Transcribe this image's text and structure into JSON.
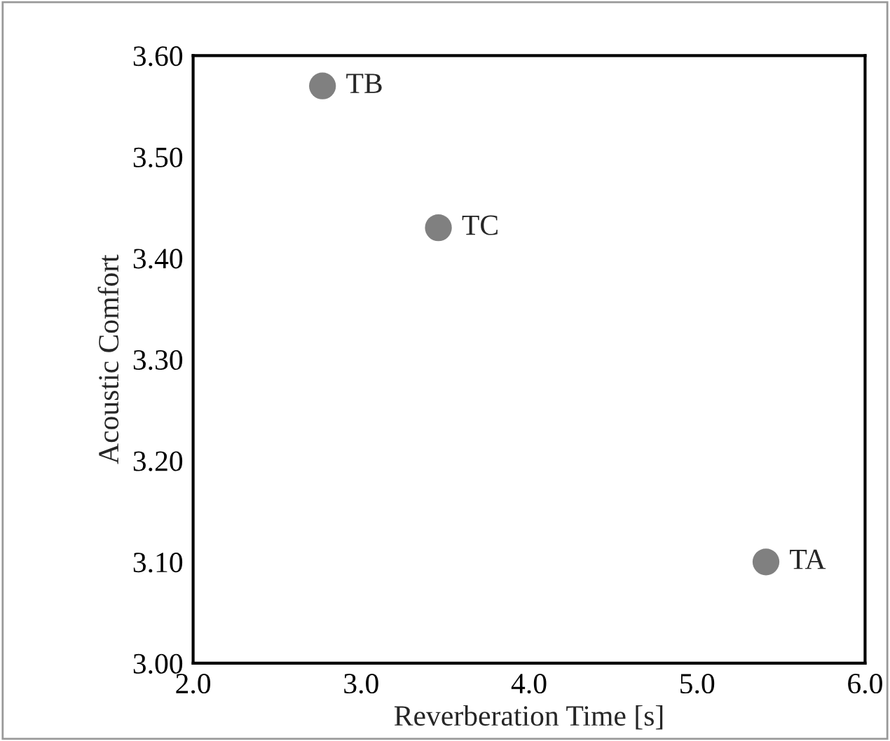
{
  "chart_data": {
    "type": "scatter",
    "xlabel": "Reverberation Time [s]",
    "ylabel": "Acoustic Comfort",
    "x": [
      5.41,
      2.77,
      3.46
    ],
    "series": [
      {
        "color": "#808080",
        "values": [
          3.1,
          3.57,
          3.43
        ]
      }
    ],
    "annotations": [
      {
        "text": "TA",
        "x": 5.41,
        "y": 3.1
      },
      {
        "text": "TB",
        "x": 2.77,
        "y": 3.57
      },
      {
        "text": "TC",
        "x": 3.46,
        "y": 3.43
      }
    ],
    "xlim": [
      2.0,
      6.0
    ],
    "xticks": [
      {
        "value": 2,
        "label": "2.0"
      },
      {
        "value": 3,
        "label": "3.0"
      },
      {
        "value": 4,
        "label": "4.0"
      },
      {
        "value": 5,
        "label": "5.0"
      },
      {
        "value": 6,
        "label": "6.0"
      }
    ],
    "ylim": [
      3.0,
      3.6
    ],
    "yticks": [
      {
        "value": 3.0,
        "label": "3.00"
      },
      {
        "value": 3.1,
        "label": "3.10"
      },
      {
        "value": 3.2,
        "label": "3.20"
      },
      {
        "value": 3.3,
        "label": "3.30"
      },
      {
        "value": 3.4,
        "label": "3.40"
      },
      {
        "value": 3.5,
        "label": "3.50"
      },
      {
        "value": 3.6,
        "label": "3.60"
      }
    ],
    "grid": false,
    "marker": "circle",
    "legend": false
  }
}
